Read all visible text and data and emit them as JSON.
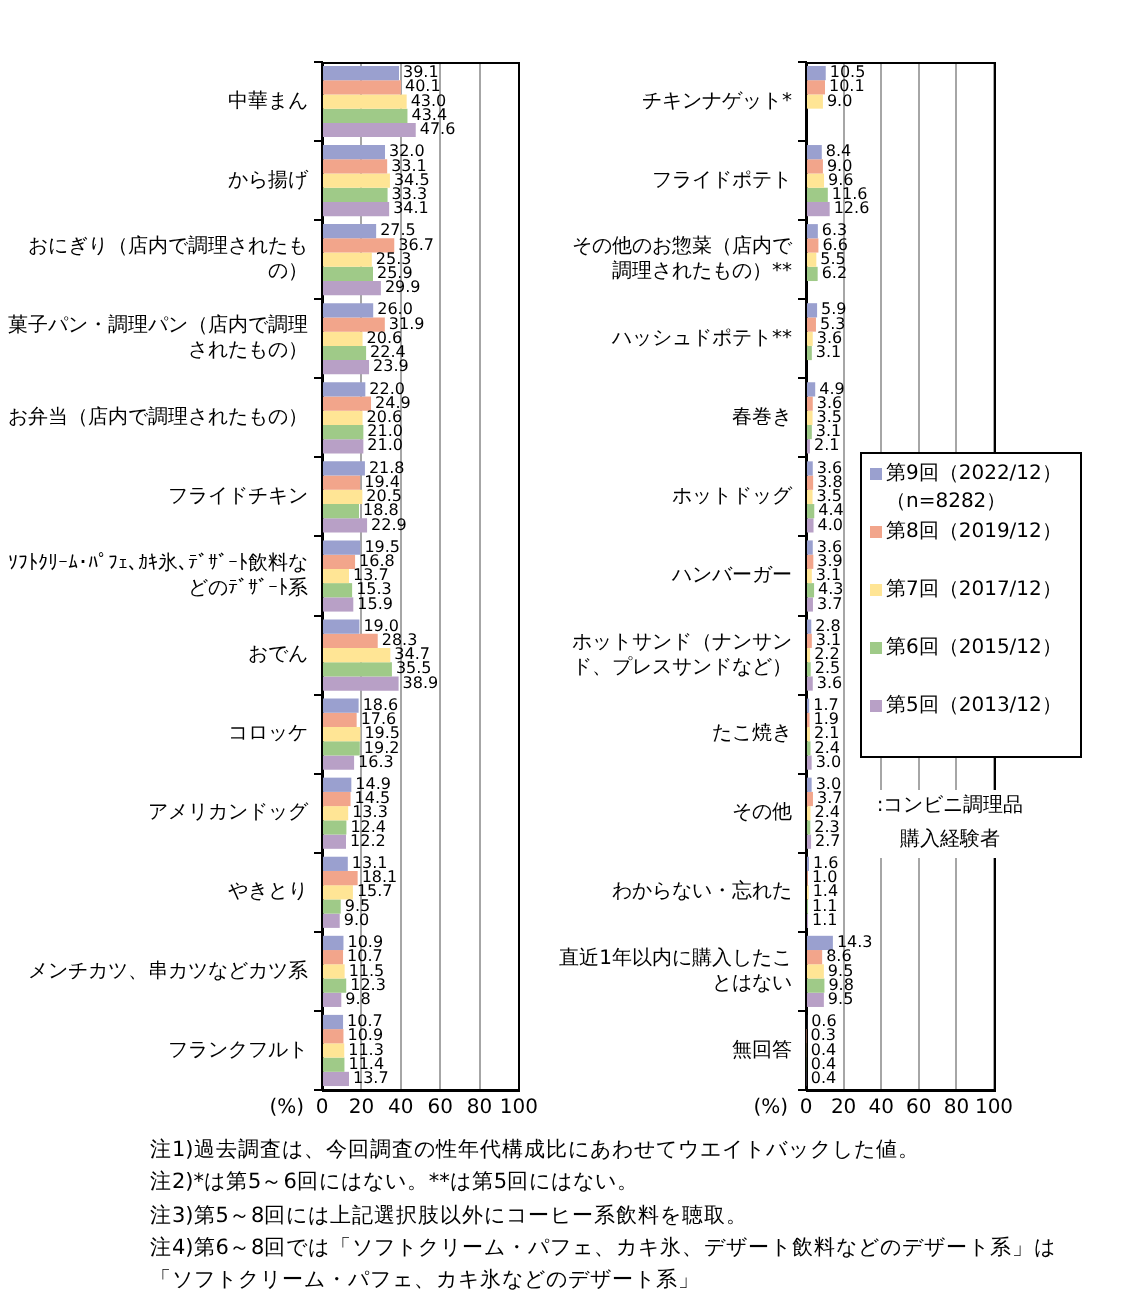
{
  "chart_data": [
    {
      "type": "bar",
      "orientation": "horizontal",
      "categories": [
        "中華まん",
        "から揚げ",
        "おにぎり（店内で調理されたもの）",
        "菓子パン・調理パン（店内で調理されたもの）",
        "お弁当（店内で調理されたもの）",
        "フライドチキン",
        "ｿﾌﾄｸﾘｰﾑ･ﾊﾟﾌｪ､ｶｷ氷､ﾃﾞｻﾞｰﾄ飲料などのﾃﾞｻﾞｰﾄ系",
        "おでん",
        "コロッケ",
        "アメリカンドッグ",
        "やきとり",
        "メンチカツ、串カツなどカツ系",
        "フランクフルト"
      ],
      "series": [
        {
          "color": "#9aa0cf",
          "values": [
            39.1,
            32.0,
            27.5,
            26.0,
            22.0,
            21.8,
            19.5,
            19.0,
            18.6,
            14.9,
            13.1,
            10.9,
            10.7
          ],
          "value_labels": [
            "39.1",
            "32.0",
            "27.5",
            "26.0",
            "22.0",
            "21.8",
            "19.5",
            "19.0",
            "18.6",
            "14.9",
            "13.1",
            "10.9",
            "10.7"
          ]
        },
        {
          "color": "#f2a58b",
          "values": [
            40.1,
            33.1,
            36.7,
            31.9,
            24.9,
            19.4,
            16.8,
            28.3,
            17.6,
            14.5,
            18.1,
            10.7,
            10.9
          ],
          "value_labels": [
            "40.1",
            "33.1",
            "36.7",
            "31.9",
            "24.9",
            "19.4",
            "16.8",
            "28.3",
            "17.6",
            "14.5",
            "18.1",
            "10.7",
            "10.9"
          ]
        },
        {
          "color": "#ffe595",
          "values": [
            43.0,
            34.5,
            25.3,
            20.6,
            20.6,
            20.5,
            13.7,
            34.7,
            19.5,
            13.3,
            15.7,
            11.5,
            11.3
          ],
          "value_labels": [
            "43.0",
            "34.5",
            "25.3",
            "20.6",
            "20.6",
            "20.5",
            "13.7",
            "34.7",
            "19.5",
            "13.3",
            "15.7",
            "11.5",
            "11.3"
          ]
        },
        {
          "color": "#9fca88",
          "values": [
            43.4,
            33.3,
            25.9,
            22.4,
            21.0,
            18.8,
            15.3,
            35.5,
            19.2,
            12.4,
            9.5,
            12.3,
            11.4
          ],
          "value_labels": [
            "43.4",
            "33.3",
            "25.9",
            "22.4",
            "21.0",
            "18.8",
            "15.3",
            "35.5",
            "19.2",
            "12.4",
            "9.5",
            "12.3",
            "11.4"
          ]
        },
        {
          "color": "#b8a0c6",
          "values": [
            47.6,
            34.1,
            29.9,
            23.9,
            21.0,
            22.9,
            15.9,
            38.9,
            16.3,
            12.2,
            9.0,
            9.8,
            13.7
          ],
          "value_labels": [
            "47.6",
            "34.1",
            "29.9",
            "23.9",
            "21.0",
            "22.9",
            "15.9",
            "38.9",
            "16.3",
            "12.2",
            "9.0",
            "9.8",
            "13.7"
          ]
        }
      ],
      "xlim": [
        0,
        100
      ],
      "xticks": [
        0,
        20,
        40,
        60,
        80,
        100
      ],
      "xlabel": "(%)",
      "grid": "x",
      "annotations": [
        "注1)過去調査は、今回調査の性年代構成比にあわせてウエイトバックした値。",
        "注2)*は第5～6回にはない。**は第5回にはない。",
        "注3)第5～8回には上記選択肢以外にコーヒー系飲料を聴取。",
        "注4)第6～8回では「ソフトクリーム・パフェ、カキ氷、デザート飲料などのデザート系」は",
        "「ソフトクリーム・パフェ、カキ氷などのデザート系」"
      ]
    },
    {
      "type": "bar",
      "orientation": "horizontal",
      "categories": [
        "チキンナゲット*",
        "フライドポテト",
        "その他のお惣菜（店内で調理されたもの）**",
        "ハッシュドポテト**",
        "春巻き",
        "ホットドッグ",
        "ハンバーガー",
        "ホットサンド（ナンサンド、プレスサンドなど）",
        "たこ焼き",
        "その他",
        "わからない・忘れた",
        "直近1年以内に購入したことはない",
        "無回答"
      ],
      "series": [
        {
          "name": "第9回（2022/12）（n=8282）",
          "color": "#9aa0cf",
          "values": [
            10.5,
            8.4,
            6.3,
            5.9,
            4.9,
            3.6,
            3.6,
            2.8,
            1.7,
            3.0,
            1.6,
            14.3,
            0.6
          ],
          "value_labels": [
            "10.5",
            "8.4",
            "6.3",
            "5.9",
            "4.9",
            "3.6",
            "3.6",
            "2.8",
            "1.7",
            "3.0",
            "1.6",
            "14.3",
            "0.6"
          ]
        },
        {
          "name": "第8回（2019/12）",
          "color": "#f2a58b",
          "values": [
            10.1,
            9.0,
            6.6,
            5.3,
            3.6,
            3.8,
            3.9,
            3.1,
            1.9,
            3.7,
            1.0,
            8.6,
            0.3
          ],
          "value_labels": [
            "10.1",
            "9.0",
            "6.6",
            "5.3",
            "3.6",
            "3.8",
            "3.9",
            "3.1",
            "1.9",
            "3.7",
            "1.0",
            "8.6",
            "0.3"
          ]
        },
        {
          "name": "第7回（2017/12）",
          "color": "#ffe595",
          "values": [
            9.0,
            9.6,
            5.5,
            3.6,
            3.5,
            3.5,
            3.1,
            2.2,
            2.1,
            2.4,
            1.4,
            9.5,
            0.4
          ],
          "value_labels": [
            "9.0",
            "9.6",
            "5.5",
            "3.6",
            "3.5",
            "3.5",
            "3.1",
            "2.2",
            "2.1",
            "2.4",
            "1.4",
            "9.5",
            "0.4"
          ]
        },
        {
          "name": "第6回（2015/12）",
          "color": "#9fca88",
          "values": [
            null,
            11.6,
            6.2,
            3.1,
            3.1,
            4.4,
            4.3,
            2.5,
            2.4,
            2.3,
            1.1,
            9.8,
            0.4
          ],
          "value_labels": [
            null,
            "11.6",
            "6.2",
            "3.1",
            "3.1",
            "4.4",
            "4.3",
            "2.5",
            "2.4",
            "2.3",
            "1.1",
            "9.8",
            "0.4"
          ]
        },
        {
          "name": "第5回（2013/12）",
          "color": "#b8a0c6",
          "values": [
            null,
            12.6,
            null,
            null,
            2.1,
            4.0,
            3.7,
            3.6,
            3.0,
            2.7,
            1.1,
            9.5,
            0.4
          ],
          "value_labels": [
            null,
            "12.6",
            null,
            null,
            "2.1",
            "4.0",
            "3.7",
            "3.6",
            "3.0",
            "2.7",
            "1.1",
            "9.5",
            "0.4"
          ]
        }
      ],
      "xlim": [
        0,
        100
      ],
      "xticks": [
        0,
        20,
        40,
        60,
        80,
        100
      ],
      "xlabel": "(%)",
      "grid": "x",
      "legend": "right",
      "annotations": [
        ":コンビニ調理品購入経験者"
      ]
    }
  ]
}
